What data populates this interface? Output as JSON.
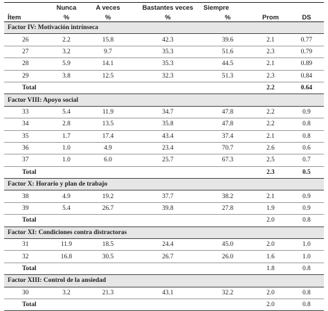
{
  "headers": {
    "item_label": "Ítem",
    "nunca": "Nunca",
    "a_veces": "A veces",
    "bastantes_veces": "Bastantes veces",
    "siempre": "Siempre",
    "pct": "%",
    "prom": "Prom",
    "ds": "DS"
  },
  "factors": [
    {
      "title": "Factor IV: Motivación intrínseca",
      "rows": [
        {
          "item": "26",
          "nunca": "2.2",
          "a_veces": "15.8",
          "bastantes": "42.3",
          "siempre": "39.6",
          "prom": "2.1",
          "ds": "0.77"
        },
        {
          "item": "27",
          "nunca": "3.2",
          "a_veces": "9.7",
          "bastantes": "35.3",
          "siempre": "51.6",
          "prom": "2.3",
          "ds": "0.79"
        },
        {
          "item": "28",
          "nunca": "5.9",
          "a_veces": "14.1",
          "bastantes": "35.3",
          "siempre": "44.5",
          "prom": "2.1",
          "ds": "0.89"
        },
        {
          "item": "29",
          "nunca": "3.8",
          "a_veces": "12.5",
          "bastantes": "32.3",
          "siempre": "51.3",
          "prom": "2.3",
          "ds": "0.84"
        }
      ],
      "total_label": "Total",
      "total_prom": "2.2",
      "total_ds": "0.64"
    },
    {
      "title": "Factor VIII: Apoyo social",
      "rows": [
        {
          "item": "33",
          "nunca": "5.4",
          "a_veces": "11.9",
          "bastantes": "34.7",
          "siempre": "47.8",
          "prom": "2.2",
          "ds": "0.9"
        },
        {
          "item": "34",
          "nunca": "2.8",
          "a_veces": "13.5",
          "bastantes": "35.8",
          "siempre": "47.8",
          "prom": "2.2",
          "ds": "0.8"
        },
        {
          "item": "35",
          "nunca": "1.7",
          "a_veces": "17.4",
          "bastantes": "43.4",
          "siempre": "37.4",
          "prom": "2.1",
          "ds": "0.8"
        },
        {
          "item": "36",
          "nunca": "1.0",
          "a_veces": "4.9",
          "bastantes": "23.4",
          "siempre": "70.7",
          "prom": "2.6",
          "ds": "0.6"
        },
        {
          "item": "37",
          "nunca": "1.0",
          "a_veces": "6.0",
          "bastantes": "25.7",
          "siempre": "67.3",
          "prom": "2.5",
          "ds": "0.7"
        }
      ],
      "total_label": "Total",
      "total_prom": "2.3",
      "total_ds": "0.5"
    },
    {
      "title": "Factor X: Horario y plan de trabajo",
      "rows": [
        {
          "item": "38",
          "nunca": "4.9",
          "a_veces": "19.2",
          "bastantes": "37.7",
          "siempre": "38.2",
          "prom": "2.1",
          "ds": "0.9"
        },
        {
          "item": "39",
          "nunca": "5.4",
          "a_veces": "26.7",
          "bastantes": "39.8",
          "siempre": "27.8",
          "prom": "1.9",
          "ds": "0.9"
        }
      ],
      "total_label": "Total",
      "total_prom": "2.0",
      "total_ds": "0.8"
    },
    {
      "title": "Factor XI: Condiciones contra distractoras",
      "rows": [
        {
          "item": "31",
          "nunca": "11.9",
          "a_veces": "18.5",
          "bastantes": "24.4",
          "siempre": "45.0",
          "prom": "2.0",
          "ds": "1.0"
        },
        {
          "item": "32",
          "nunca": "16.8",
          "a_veces": "30.5",
          "bastantes": "26.7",
          "siempre": "26.0",
          "prom": "1.6",
          "ds": "1.0"
        }
      ],
      "total_label": "Total",
      "total_prom": "1.8",
      "total_ds": "0.8"
    },
    {
      "title": "Factor XIII: Control de la ansiedad",
      "rows": [
        {
          "item": "30",
          "nunca": "3.2",
          "a_veces": "21.3",
          "bastantes": "43.1",
          "siempre": "32.2",
          "prom": "2.0",
          "ds": "0.8"
        }
      ],
      "total_label": "Total",
      "total_prom": "2.0",
      "total_ds": "0.8"
    }
  ]
}
